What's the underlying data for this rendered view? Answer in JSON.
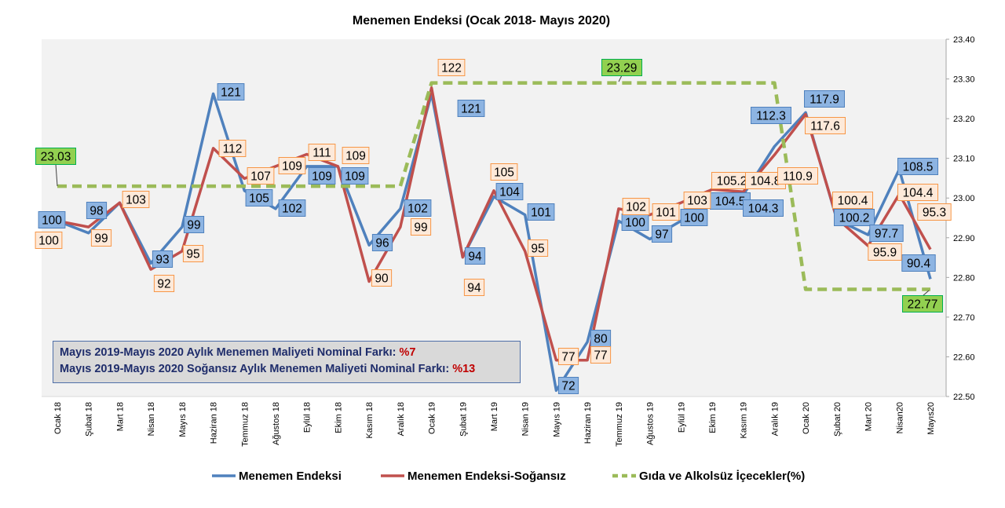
{
  "chart_data": {
    "type": "line",
    "title": "Menemen Endeksi (Ocak 2018- Mayıs 2020)",
    "categories": [
      "Ocak 18",
      "Şubat 18",
      "Mart 18",
      "Nisan 18",
      "Mayıs 18",
      "Haziran 18",
      "Temmuz 18",
      "Ağustos 18",
      "Eylül 18",
      "Ekim 18",
      "Kasım 18",
      "Aralık 18",
      "Ocak 19",
      "Şubat 19",
      "Mart 19",
      "Nisan 19",
      "Mayıs 19",
      "Haziran 19",
      "Temmuz 19",
      "Ağustos 19",
      "Eylül 19",
      "Ekim 19",
      "Kasım 19",
      "Aralık 19",
      "Ocak 20",
      "Şubat 20",
      "Mart 20",
      "Nisan20",
      "Mayıs20"
    ],
    "right_axis": {
      "ylim": [
        22.5,
        23.4
      ],
      "ticks": [
        "22.50",
        "22.60",
        "22.70",
        "22.80",
        "22.90",
        "23.00",
        "23.10",
        "23.20",
        "23.30",
        "23.40"
      ]
    },
    "left_axis_hidden_ylim": [
      71,
      130
    ],
    "grid": false,
    "legend_position": "bottom",
    "series": [
      {
        "name": "Menemen Endeksi",
        "color": "#4f81bd",
        "axis": "left",
        "values": [
          100,
          98,
          103,
          93,
          99,
          121,
          105,
          102,
          109,
          109,
          96,
          102,
          121,
          94,
          104,
          101,
          72,
          80,
          100,
          97,
          100,
          104.5,
          104.3,
          112.3,
          117.9,
          100.2,
          97.7,
          108.5,
          90.4
        ],
        "labels": [
          "100",
          "98",
          null,
          "93",
          "99",
          "121",
          "105",
          "102",
          "109",
          "109",
          "96",
          "102",
          "121",
          "94",
          "104",
          "101",
          "72",
          "80",
          "100",
          "97",
          "100",
          "104.5",
          "104.3",
          "112.3",
          "117.9",
          "100.2",
          "97.7",
          "108.5",
          "90.4"
        ]
      },
      {
        "name": "Menemen Endeksi-Soğansız",
        "color": "#c0504d",
        "axis": "left",
        "values": [
          100,
          99,
          103,
          92,
          95,
          112,
          107,
          109,
          111,
          109,
          90,
          99,
          122,
          94,
          105,
          95,
          77,
          77,
          102,
          101,
          103,
          105.2,
          104.8,
          110.9,
          117.6,
          100.4,
          95.9,
          104.4,
          95.3
        ],
        "labels": [
          "100",
          "99",
          "103",
          "92",
          "95",
          "112",
          "107",
          "109",
          "111",
          "109",
          "90",
          "99",
          "122",
          "94",
          "105",
          "95",
          "77",
          "77",
          "102",
          "101",
          "103",
          "105.2",
          "104.8",
          "110.9",
          "117.6",
          "100.4",
          "95.9",
          "104.4",
          "95.3"
        ]
      },
      {
        "name": "Gıda ve Alkolsüz İçecekler(%)",
        "color": "#9bbb59",
        "axis": "right",
        "dashed": true,
        "values": [
          23.03,
          23.03,
          23.03,
          23.03,
          23.03,
          23.03,
          23.03,
          23.03,
          23.03,
          23.03,
          23.03,
          23.03,
          23.29,
          23.29,
          23.29,
          23.29,
          23.29,
          23.29,
          23.29,
          23.29,
          23.29,
          23.29,
          23.29,
          23.29,
          22.77,
          22.77,
          22.77,
          22.77,
          22.77
        ],
        "labels": [
          "23.03",
          "23.29",
          "22.77"
        ]
      }
    ],
    "annotation": {
      "line1": "Mayıs 2019-Mayıs 2020 Aylık Menemen Maliyeti Nominal Farkı: ",
      "line1_value": "%7",
      "line2": "Mayıs 2019-Mayıs 2020 Soğansız Aylık Menemen Maliyeti Nominal Farkı: ",
      "line2_value": "%13"
    }
  }
}
